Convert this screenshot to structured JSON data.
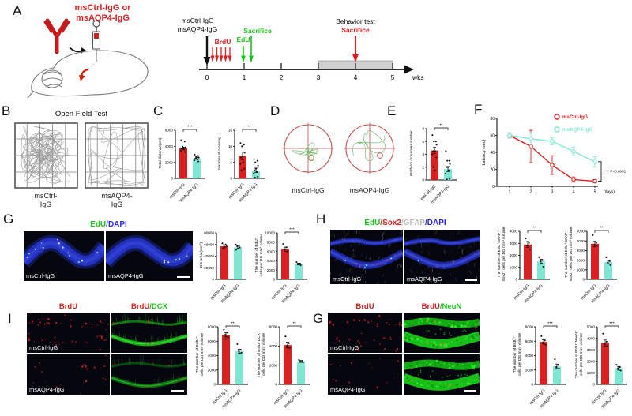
{
  "colors": {
    "red": "#d92121",
    "cyan": "#7fe6d4",
    "green": "#17c417",
    "blue": "#2a2ae0",
    "gray": "#b9b9b9",
    "maze": "#c0504d"
  },
  "group_labels": [
    "msCtrl-IgG",
    "msAQP4-IgG"
  ],
  "panels": {
    "A": {
      "label": "A",
      "injection_line1": "msCtrl-IgG or",
      "injection_line2": "msAQP4-IgG",
      "timeline": {
        "inj1": "msCtrl-IgG",
        "inj2": "msAQP4-IgG",
        "brdu": "BrdU",
        "sacrifice": "Sacrifice",
        "edu": "EdU",
        "behavior": "Behavior test",
        "sacrifice2": "Sacrifice",
        "ticks": [
          "0",
          "1",
          "2",
          "3",
          "4",
          "5"
        ],
        "unit": "wks"
      }
    },
    "B": {
      "label": "B",
      "title": "Open Field Test",
      "group1_line1": "msCtrl-",
      "group1_line2": "IgG",
      "group2_line1": "msAQP4-",
      "group2_line2": "IgG"
    },
    "C": {
      "label": "C"
    },
    "D": {
      "label": "D",
      "group1": "msCtrl-IgG",
      "group2": "msAQP4-IgG"
    },
    "E": {
      "label": "E"
    },
    "F": {
      "label": "F"
    },
    "G": {
      "label": "G",
      "title_parts": [
        {
          "t": "EdU",
          "c": "green"
        },
        {
          "t": "/",
          "c": "blue"
        },
        {
          "t": "DAPI",
          "c": "blue"
        }
      ],
      "img1_label": "msCtrl-IgG",
      "img2_label": "msAQP4-IgG"
    },
    "H": {
      "label": "H",
      "title_parts": [
        {
          "t": "EdU",
          "c": "green"
        },
        {
          "t": "/",
          "c": "red"
        },
        {
          "t": "Sox2",
          "c": "red"
        },
        {
          "t": "/",
          "c": "gray"
        },
        {
          "t": "GFAP",
          "c": "gray"
        },
        {
          "t": "/",
          "c": "blue"
        },
        {
          "t": "DAPI",
          "c": "blue"
        }
      ],
      "img1_label": "msCtrl-IgG",
      "img2_label": "msAQP4-IgG"
    },
    "I": {
      "label": "I",
      "col1_title": "BrdU",
      "col2_parts": [
        {
          "t": "BrdU",
          "c": "red"
        },
        {
          "t": "/",
          "c": "green"
        },
        {
          "t": "DCX",
          "c": "green"
        }
      ],
      "row1_label": "msCtrl-IgG",
      "row2_label": "msAQP4-IgG"
    },
    "J": {
      "label": "G",
      "col1_title": "BrdU",
      "col2_parts": [
        {
          "t": "BrdU",
          "c": "red"
        },
        {
          "t": "/",
          "c": "green"
        },
        {
          "t": "NeuN",
          "c": "green"
        }
      ],
      "row1_label": "msCtrl-IgG",
      "row2_label": "msAQP4-IgG"
    }
  },
  "chart_data": [
    {
      "id": "total-distance",
      "type": "bar",
      "ylabel": [
        "Total distance(cm)"
      ],
      "values": [
        3750,
        2500
      ],
      "errors": [
        150,
        120
      ],
      "points": [
        [
          4750,
          4600,
          3950,
          3850,
          3750,
          3700,
          3600,
          3450,
          3300
        ],
        [
          2950,
          2800,
          2700,
          2600,
          2500,
          2450,
          2350,
          2250,
          2100
        ]
      ],
      "ymax": 6000,
      "yticks": [
        0,
        2000,
        4000,
        6000
      ],
      "sig": "***"
    },
    {
      "id": "crossing",
      "type": "bar",
      "ylabel": [
        "Number of crossing"
      ],
      "values": [
        7,
        2.5
      ],
      "errors": [
        1.2,
        0.7
      ],
      "points": [
        [
          11,
          10.5,
          10,
          8,
          7,
          6.5,
          5,
          4.5,
          3,
          2.5
        ],
        [
          6,
          5.5,
          5,
          4,
          3,
          2.5,
          2,
          1.5,
          0.5,
          0.3
        ]
      ],
      "ymax": 15,
      "yticks": [
        0,
        5,
        10,
        15
      ],
      "sig": "**"
    },
    {
      "id": "platform-crossover",
      "type": "bar",
      "ylabel": [
        "Platform crossover number"
      ],
      "values": [
        4.6,
        1.7
      ],
      "errors": [
        0.5,
        0.4
      ],
      "points": [
        [
          7,
          6,
          6,
          5.5,
          5,
          4.5,
          4.5,
          4,
          3.5,
          2,
          1.5
        ],
        [
          4.5,
          3,
          3,
          2.5,
          2,
          2,
          1.5,
          1,
          0.15,
          0.1
        ]
      ],
      "ymax": 8,
      "yticks": [
        0,
        2,
        4,
        6,
        8
      ],
      "sig": "**"
    },
    {
      "id": "latency",
      "type": "line",
      "ylabel": "Latency (sec)",
      "xlabel": "(days)",
      "x": [
        1,
        2,
        3,
        4,
        5
      ],
      "ymax": 80,
      "yticks": [
        0,
        20,
        40,
        60,
        80
      ],
      "series": [
        {
          "name": "msCtrl-IgG",
          "color": "red",
          "values": [
            60,
            47,
            25,
            8,
            6
          ],
          "errors": [
            3,
            19,
            11,
            3,
            2
          ]
        },
        {
          "name": "msAQP4-IgG",
          "color": "cyan",
          "values": [
            60,
            56,
            53,
            41,
            29
          ],
          "errors": [
            3,
            7,
            4,
            5,
            6
          ]
        }
      ],
      "sig": "**** P<0.0001"
    },
    {
      "id": "dg-area",
      "type": "bar",
      "ylabel": [
        "DG area (mm²)"
      ],
      "values": [
        57000,
        55000
      ],
      "errors": [
        2500,
        2200
      ],
      "points": [
        [
          62000,
          60000,
          59000,
          57000,
          55000,
          53000
        ],
        [
          60000,
          58500,
          57000,
          55000,
          53000,
          51000
        ]
      ],
      "ymax": 80000,
      "yticks": [
        0,
        20000,
        40000,
        60000,
        80000
      ],
      "sig": null
    },
    {
      "id": "edu-cells",
      "type": "bar",
      "ylabel": [
        "The number of EdU⁺",
        "cells per DG mm³ volume"
      ],
      "values": [
        6500,
        3300
      ],
      "errors": [
        450,
        200
      ],
      "points": [
        [
          7600,
          6900,
          6400,
          6000
        ],
        [
          3700,
          3400,
          3250,
          3050
        ]
      ],
      "ymax": 10000,
      "yticks": [
        0,
        2000,
        4000,
        6000,
        8000,
        10000
      ],
      "sig": "***"
    },
    {
      "id": "edu-gfap-sox2",
      "type": "bar",
      "ylabel": [
        "The number of EdU⁺GFAP⁺",
        "Sox2⁺ cells per DG mm³ volume"
      ],
      "values": [
        2900,
        1500
      ],
      "errors": [
        250,
        170
      ],
      "points": [
        [
          3400,
          3050,
          2800,
          2500
        ],
        [
          1850,
          1600,
          1500,
          1050
        ]
      ],
      "ymax": 4000,
      "yticks": [
        0,
        1000,
        2000,
        3000,
        4000
      ],
      "sig": "**"
    },
    {
      "id": "edu-sox2",
      "type": "bar",
      "ylabel": [
        "The number of EdU⁺GFAP⁻",
        "Sox2⁺ cells per DG mm³ volume"
      ],
      "values": [
        3700,
        1800
      ],
      "errors": [
        280,
        180
      ],
      "points": [
        [
          4600,
          3800,
          3600,
          3500
        ],
        [
          2300,
          1900,
          1750,
          1500
        ]
      ],
      "ymax": 5000,
      "yticks": [
        0,
        1000,
        2000,
        3000,
        4000,
        5000
      ],
      "sig": "**"
    },
    {
      "id": "brdu-cells",
      "type": "bar",
      "ylabel": [
        "The number of BrdU⁺",
        "cells per DG mm³ volume"
      ],
      "values": [
        6900,
        4600
      ],
      "errors": [
        300,
        280
      ],
      "points": [
        [
          7600,
          7200,
          6900,
          6500,
          6300
        ],
        [
          5600,
          4800,
          4600,
          4400,
          4300
        ]
      ],
      "ymax": 8000,
      "yticks": [
        0,
        2000,
        4000,
        6000,
        8000
      ],
      "sig": "**"
    },
    {
      "id": "brdu-dcx",
      "type": "bar",
      "ylabel": [
        "The number of BrdU⁺DCX⁺",
        "cells per DG mm³ volume"
      ],
      "values": [
        4100,
        2400
      ],
      "errors": [
        300,
        100
      ],
      "points": [
        [
          5000,
          4300,
          4000,
          3800
        ],
        [
          2550,
          2450,
          2400,
          2300
        ]
      ],
      "ymax": 6000,
      "yticks": [
        0,
        2000,
        4000,
        6000
      ],
      "sig": "**"
    },
    {
      "id": "brdu-cells-2",
      "type": "bar",
      "ylabel": [
        "The number of BrdU⁺",
        "cells per DG mm³ volume"
      ],
      "values": [
        5900,
        2500
      ],
      "errors": [
        280,
        320
      ],
      "points": [
        [
          6700,
          6100,
          5800,
          5500
        ],
        [
          3500,
          2700,
          2400,
          2200
        ]
      ],
      "ymax": 8000,
      "yticks": [
        0,
        2000,
        4000,
        6000,
        8000
      ],
      "sig": "***"
    },
    {
      "id": "brdu-neun",
      "type": "bar",
      "ylabel": [
        "The number of BrdU⁺NeuN⁺",
        "cells per DG mm³ volume"
      ],
      "values": [
        3600,
        1400
      ],
      "errors": [
        250,
        160
      ],
      "points": [
        [
          4400,
          3700,
          3500,
          3300
        ],
        [
          1700,
          1500,
          1400,
          1200
        ]
      ],
      "ymax": 5000,
      "yticks": [
        0,
        1000,
        2000,
        3000,
        4000,
        5000
      ],
      "sig": "***"
    }
  ]
}
